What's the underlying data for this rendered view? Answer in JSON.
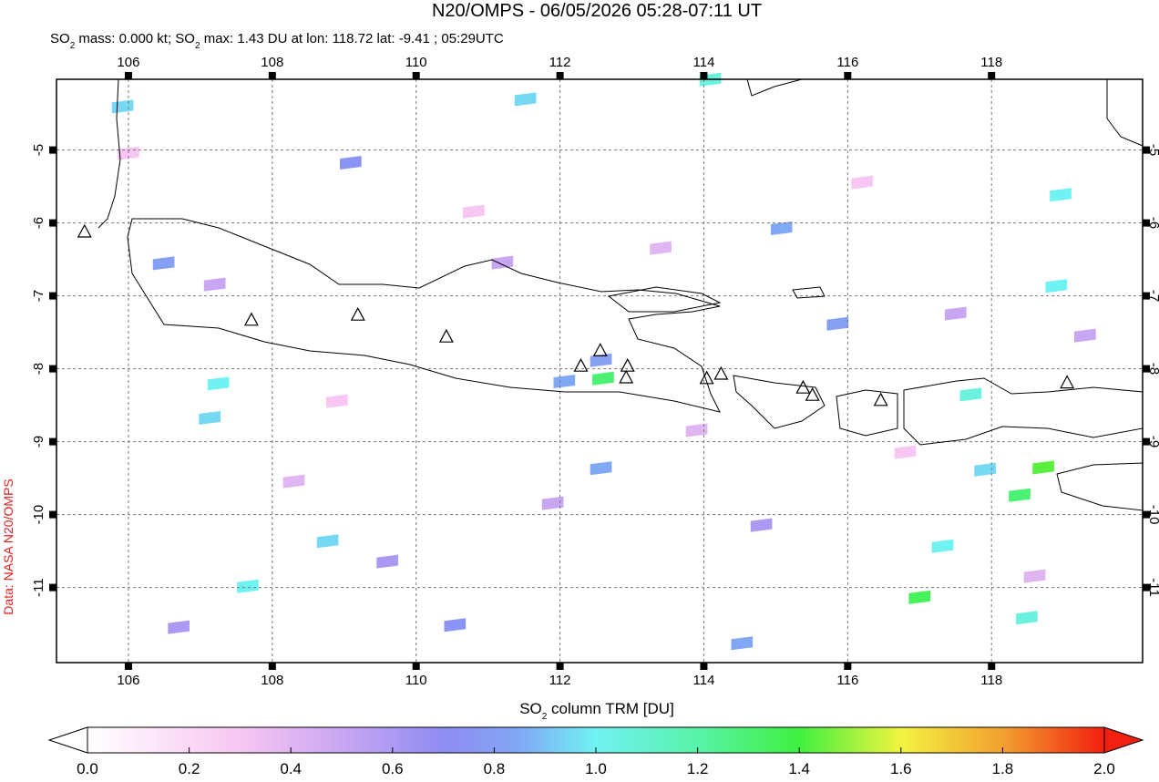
{
  "chart_data": {
    "type": "map",
    "title": "N20/OMPS - 06/05/2026 05:28-07:11 UT",
    "subtitle": [
      "SO",
      "2",
      " mass: 0.000 kt; SO",
      "2",
      " max: 1.43 DU at lon: 118.72 lat: -9.41 ; 05:29UTC"
    ],
    "credit": "Data: NASA N20/OMPS",
    "xlim": [
      105,
      120.1
    ],
    "ylim": [
      -12.03,
      -4.03
    ],
    "xticks": [
      106,
      108,
      110,
      112,
      114,
      116,
      118
    ],
    "yticks": [
      -5,
      -6,
      -7,
      -8,
      -9,
      -10,
      -11
    ],
    "grid": true,
    "volcanoes": {
      "lon": [
        105.39,
        107.71,
        109.19,
        110.42,
        112.29,
        112.56,
        112.94,
        112.92,
        114.04,
        114.24,
        115.38,
        115.51,
        116.46,
        119.05
      ],
      "lat": [
        -6.13,
        -7.34,
        -7.27,
        -7.57,
        -7.97,
        -7.76,
        -7.97,
        -8.13,
        -8.14,
        -8.08,
        -8.27,
        -8.37,
        -8.44,
        -8.2
      ]
    },
    "pixels": {
      "lon": [
        107.25,
        105.92,
        111.52,
        114.09,
        112.6,
        112.57,
        118.72,
        118.39,
        117.0,
        118.49,
        107.66,
        108.77,
        107.13,
        117.32,
        117.91,
        118.96,
        118.9,
        106.49,
        109.09,
        112.06,
        110.54,
        114.53,
        112.57,
        117.71,
        115.08,
        115.86,
        106.0,
        107.2,
        108.3,
        109.6,
        110.8,
        111.9,
        113.4,
        114.8,
        116.2,
        117.5,
        118.6,
        106.7,
        108.9,
        111.2,
        113.9,
        116.8,
        119.3
      ],
      "lat": [
        -8.26,
        -4.46,
        -4.36,
        -4.09,
        -8.19,
        -7.94,
        -9.41,
        -9.79,
        -11.19,
        -11.47,
        -11.04,
        -10.42,
        -8.73,
        -10.49,
        -9.44,
        -5.67,
        -6.92,
        -6.61,
        -5.23,
        -8.23,
        -11.57,
        -11.82,
        -9.42,
        -8.41,
        -6.13,
        -7.44,
        -5.1,
        -6.9,
        -9.6,
        -10.7,
        -5.9,
        -9.9,
        -6.4,
        -10.2,
        -5.5,
        -7.3,
        -10.9,
        -11.6,
        -8.5,
        -6.6,
        -8.9,
        -9.2,
        -7.6
      ],
      "values": [
        1.0,
        0.95,
        0.95,
        1.05,
        1.3,
        0.8,
        1.43,
        1.3,
        1.35,
        1.05,
        1.0,
        0.95,
        0.95,
        1.0,
        0.95,
        1.0,
        1.0,
        0.8,
        0.75,
        0.85,
        0.75,
        0.85,
        0.85,
        1.05,
        0.85,
        0.8,
        0.3,
        0.5,
        0.4,
        0.6,
        0.3,
        0.5,
        0.4,
        0.6,
        0.3,
        0.5,
        0.4,
        0.6,
        0.3,
        0.5,
        0.4,
        0.3,
        0.5
      ]
    },
    "colorbar": {
      "label": [
        "SO",
        "2",
        " column TRM [DU]"
      ],
      "lim": [
        0,
        2
      ],
      "ticks": [
        {
          "value": 0,
          "label": "0.0"
        },
        0.2,
        0.4,
        0.6,
        0.8,
        {
          "value": 1,
          "label": "1.0"
        },
        1.2,
        1.4,
        1.6,
        1.8,
        {
          "value": 2,
          "label": "2.0"
        }
      ],
      "stops": [
        0,
        0.3,
        0.5,
        0.7,
        0.85,
        1.0,
        1.2,
        1.4,
        1.6,
        1.8,
        2.0
      ],
      "colors": [
        "#ffffff",
        "#f7c6f2",
        "#c9a6f2",
        "#8f8cf2",
        "#80a8f4",
        "#70f2f2",
        "#58f2a8",
        "#40f040",
        "#f2f240",
        "#f2a030",
        "#f22010"
      ]
    }
  }
}
